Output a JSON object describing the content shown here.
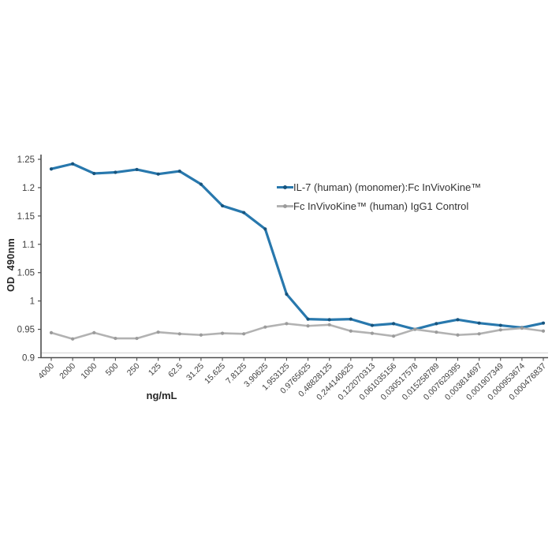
{
  "figure": {
    "ylabel": "OD  490nm",
    "xlabel": "ng/mL"
  },
  "chart_data": {
    "type": "line",
    "title": "",
    "xlabel": "ng/mL",
    "ylabel": "OD  490nm",
    "ylim": [
      0.9,
      1.25
    ],
    "ytick_step": 0.05,
    "ytick_labels": [
      "0.9",
      "0.95",
      "1",
      "1.05",
      "1.1",
      "1.15",
      "1.2",
      "1.25"
    ],
    "grid": false,
    "legend_position": "inside upper right",
    "categories": [
      "4000",
      "2000",
      "1000",
      "500",
      "250",
      "125",
      "62.5",
      "31.25",
      "15.625",
      "7.8125",
      "3.90625",
      "1.953125",
      "0.9765625",
      "0.48828125",
      "0.244140625",
      "0.122070313",
      "0.061035156",
      "0.030517578",
      "0.015258789",
      "0.007629395",
      "0.003814697",
      "0.001907349",
      "0.000953674",
      "0.000476837"
    ],
    "series": [
      {
        "name": "IL-7 (human) (monomer):Fc InVivoKine™",
        "color": "#2878ad",
        "marker_color": "#17547e",
        "values": [
          1.233,
          1.242,
          1.225,
          1.227,
          1.232,
          1.224,
          1.229,
          1.206,
          1.168,
          1.156,
          1.127,
          1.012,
          0.968,
          0.967,
          0.968,
          0.957,
          0.96,
          0.95,
          0.96,
          0.967,
          0.961,
          0.957,
          0.953,
          0.961
        ]
      },
      {
        "name": "Fc InVivoKine™ (human) IgG1 Control",
        "color": "#b2b2b2",
        "marker_color": "#9b9b9b",
        "values": [
          0.944,
          0.933,
          0.944,
          0.934,
          0.934,
          0.945,
          0.942,
          0.94,
          0.943,
          0.942,
          0.954,
          0.96,
          0.956,
          0.958,
          0.947,
          0.943,
          0.938,
          0.95,
          0.945,
          0.94,
          0.942,
          0.949,
          0.952,
          0.947
        ]
      }
    ]
  }
}
